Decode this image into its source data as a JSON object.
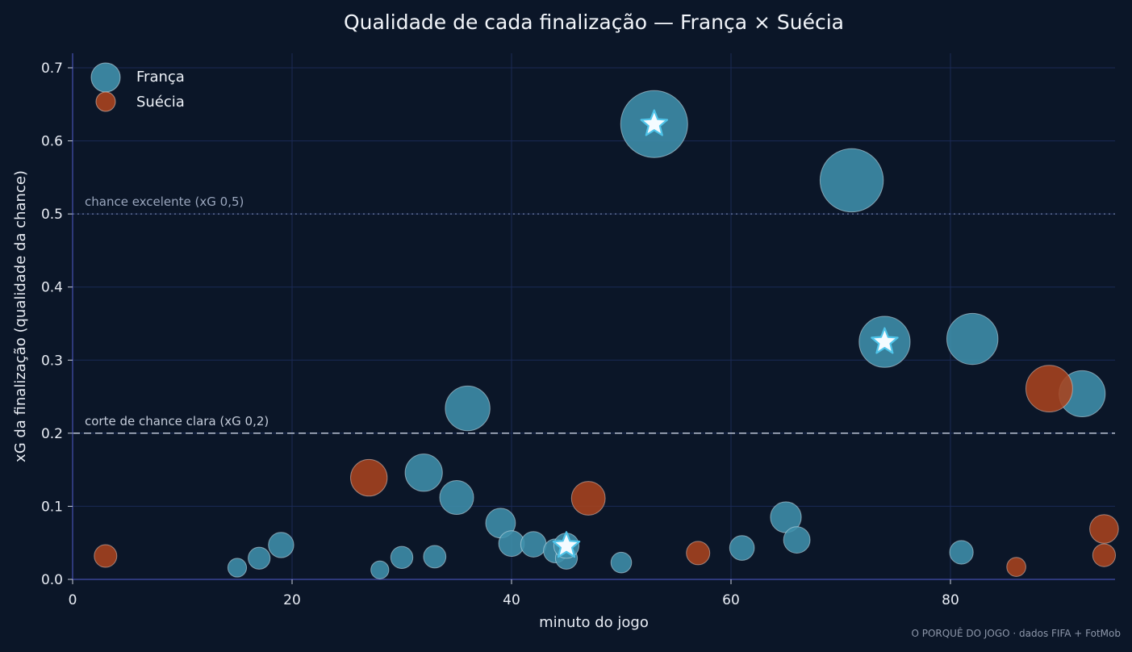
{
  "chart_data": {
    "type": "scatter",
    "title": "Qualidade de cada finalização — França × Suécia",
    "xlabel": "minuto do jogo",
    "ylabel": "xG da finalização (qualidade da chance)",
    "xlim": [
      0,
      95
    ],
    "ylim": [
      0,
      0.72
    ],
    "xticks": [
      0,
      20,
      40,
      60,
      80
    ],
    "yticks": [
      0.0,
      0.1,
      0.2,
      0.3,
      0.4,
      0.5,
      0.6,
      0.7
    ],
    "ytick_labels": [
      "0.0",
      "0.1",
      "0.2",
      "0.3",
      "0.4",
      "0.5",
      "0.6",
      "0.7"
    ],
    "grid": true,
    "legend_position": "top-left",
    "reference_lines": [
      {
        "y": 0.5,
        "label": "chance excelente (xG 0,5)",
        "style": "dotted"
      },
      {
        "y": 0.2,
        "label": "corte de chance clara (xG 0,2)",
        "style": "dashed"
      }
    ],
    "marker_size": "proportional to xG",
    "series": [
      {
        "name": "França",
        "color": "#3f8fab",
        "points": [
          {
            "x": 15,
            "y": 0.016
          },
          {
            "x": 17,
            "y": 0.029
          },
          {
            "x": 19,
            "y": 0.047
          },
          {
            "x": 28,
            "y": 0.013
          },
          {
            "x": 30,
            "y": 0.03
          },
          {
            "x": 32,
            "y": 0.146
          },
          {
            "x": 33,
            "y": 0.031
          },
          {
            "x": 35,
            "y": 0.112
          },
          {
            "x": 36,
            "y": 0.234
          },
          {
            "x": 39,
            "y": 0.077
          },
          {
            "x": 40,
            "y": 0.049
          },
          {
            "x": 42,
            "y": 0.048
          },
          {
            "x": 44,
            "y": 0.039
          },
          {
            "x": 45,
            "y": 0.029
          },
          {
            "x": 45,
            "y": 0.046,
            "goal": true
          },
          {
            "x": 50,
            "y": 0.023
          },
          {
            "x": 53,
            "y": 0.623,
            "goal": true
          },
          {
            "x": 61,
            "y": 0.043
          },
          {
            "x": 65,
            "y": 0.085
          },
          {
            "x": 66,
            "y": 0.054
          },
          {
            "x": 71,
            "y": 0.546
          },
          {
            "x": 74,
            "y": 0.325,
            "goal": true
          },
          {
            "x": 81,
            "y": 0.037
          },
          {
            "x": 82,
            "y": 0.329
          },
          {
            "x": 92,
            "y": 0.254
          }
        ]
      },
      {
        "name": "Suécia",
        "color": "#a8431e",
        "points": [
          {
            "x": 3,
            "y": 0.032
          },
          {
            "x": 27,
            "y": 0.139
          },
          {
            "x": 47,
            "y": 0.111
          },
          {
            "x": 57,
            "y": 0.036
          },
          {
            "x": 86,
            "y": 0.017
          },
          {
            "x": 89,
            "y": 0.261
          },
          {
            "x": 94,
            "y": 0.069
          },
          {
            "x": 94,
            "y": 0.033
          }
        ]
      }
    ],
    "source": "O PORQUÊ DO JOGO · dados FIFA + FotMob"
  },
  "colors": {
    "background": "#0b1628",
    "grid": "#1b2a55",
    "axis": "#3a4596",
    "goal_star": "#4fc3e8"
  }
}
